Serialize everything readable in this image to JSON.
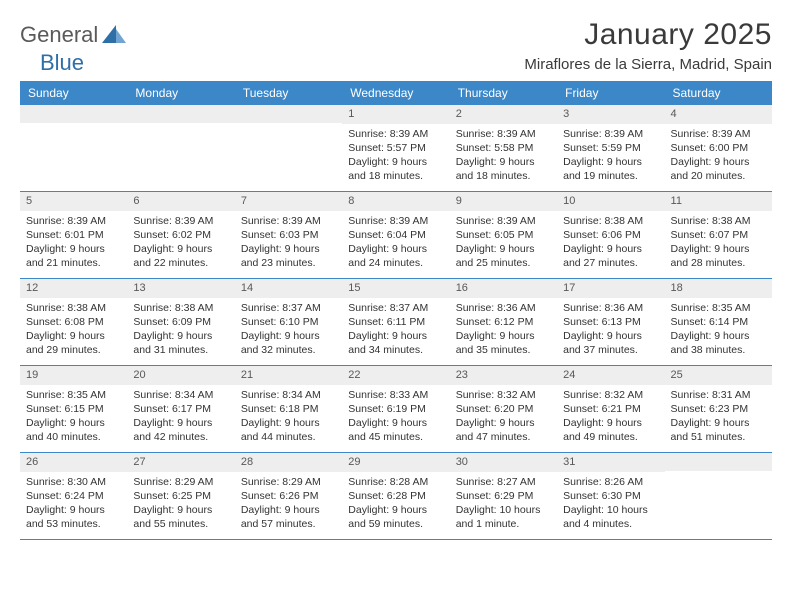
{
  "logo": {
    "part1": "General",
    "part2": "Blue"
  },
  "title": "January 2025",
  "location": "Miraflores de la Sierra, Madrid, Spain",
  "colors": {
    "header_bg": "#3b87c8",
    "header_text": "#ffffff",
    "daynum_bg": "#eeeeee",
    "border": "#3b87c8",
    "body_text": "#333333",
    "logo_gray": "#5a5a5a",
    "logo_blue": "#2f6fa8"
  },
  "dayNames": [
    "Sunday",
    "Monday",
    "Tuesday",
    "Wednesday",
    "Thursday",
    "Friday",
    "Saturday"
  ],
  "weeks": [
    [
      {
        "n": "",
        "lines": [
          "",
          "",
          "",
          ""
        ]
      },
      {
        "n": "",
        "lines": [
          "",
          "",
          "",
          ""
        ]
      },
      {
        "n": "",
        "lines": [
          "",
          "",
          "",
          ""
        ]
      },
      {
        "n": "1",
        "lines": [
          "Sunrise: 8:39 AM",
          "Sunset: 5:57 PM",
          "Daylight: 9 hours",
          "and 18 minutes."
        ]
      },
      {
        "n": "2",
        "lines": [
          "Sunrise: 8:39 AM",
          "Sunset: 5:58 PM",
          "Daylight: 9 hours",
          "and 18 minutes."
        ]
      },
      {
        "n": "3",
        "lines": [
          "Sunrise: 8:39 AM",
          "Sunset: 5:59 PM",
          "Daylight: 9 hours",
          "and 19 minutes."
        ]
      },
      {
        "n": "4",
        "lines": [
          "Sunrise: 8:39 AM",
          "Sunset: 6:00 PM",
          "Daylight: 9 hours",
          "and 20 minutes."
        ]
      }
    ],
    [
      {
        "n": "5",
        "lines": [
          "Sunrise: 8:39 AM",
          "Sunset: 6:01 PM",
          "Daylight: 9 hours",
          "and 21 minutes."
        ]
      },
      {
        "n": "6",
        "lines": [
          "Sunrise: 8:39 AM",
          "Sunset: 6:02 PM",
          "Daylight: 9 hours",
          "and 22 minutes."
        ]
      },
      {
        "n": "7",
        "lines": [
          "Sunrise: 8:39 AM",
          "Sunset: 6:03 PM",
          "Daylight: 9 hours",
          "and 23 minutes."
        ]
      },
      {
        "n": "8",
        "lines": [
          "Sunrise: 8:39 AM",
          "Sunset: 6:04 PM",
          "Daylight: 9 hours",
          "and 24 minutes."
        ]
      },
      {
        "n": "9",
        "lines": [
          "Sunrise: 8:39 AM",
          "Sunset: 6:05 PM",
          "Daylight: 9 hours",
          "and 25 minutes."
        ]
      },
      {
        "n": "10",
        "lines": [
          "Sunrise: 8:38 AM",
          "Sunset: 6:06 PM",
          "Daylight: 9 hours",
          "and 27 minutes."
        ]
      },
      {
        "n": "11",
        "lines": [
          "Sunrise: 8:38 AM",
          "Sunset: 6:07 PM",
          "Daylight: 9 hours",
          "and 28 minutes."
        ]
      }
    ],
    [
      {
        "n": "12",
        "lines": [
          "Sunrise: 8:38 AM",
          "Sunset: 6:08 PM",
          "Daylight: 9 hours",
          "and 29 minutes."
        ]
      },
      {
        "n": "13",
        "lines": [
          "Sunrise: 8:38 AM",
          "Sunset: 6:09 PM",
          "Daylight: 9 hours",
          "and 31 minutes."
        ]
      },
      {
        "n": "14",
        "lines": [
          "Sunrise: 8:37 AM",
          "Sunset: 6:10 PM",
          "Daylight: 9 hours",
          "and 32 minutes."
        ]
      },
      {
        "n": "15",
        "lines": [
          "Sunrise: 8:37 AM",
          "Sunset: 6:11 PM",
          "Daylight: 9 hours",
          "and 34 minutes."
        ]
      },
      {
        "n": "16",
        "lines": [
          "Sunrise: 8:36 AM",
          "Sunset: 6:12 PM",
          "Daylight: 9 hours",
          "and 35 minutes."
        ]
      },
      {
        "n": "17",
        "lines": [
          "Sunrise: 8:36 AM",
          "Sunset: 6:13 PM",
          "Daylight: 9 hours",
          "and 37 minutes."
        ]
      },
      {
        "n": "18",
        "lines": [
          "Sunrise: 8:35 AM",
          "Sunset: 6:14 PM",
          "Daylight: 9 hours",
          "and 38 minutes."
        ]
      }
    ],
    [
      {
        "n": "19",
        "lines": [
          "Sunrise: 8:35 AM",
          "Sunset: 6:15 PM",
          "Daylight: 9 hours",
          "and 40 minutes."
        ]
      },
      {
        "n": "20",
        "lines": [
          "Sunrise: 8:34 AM",
          "Sunset: 6:17 PM",
          "Daylight: 9 hours",
          "and 42 minutes."
        ]
      },
      {
        "n": "21",
        "lines": [
          "Sunrise: 8:34 AM",
          "Sunset: 6:18 PM",
          "Daylight: 9 hours",
          "and 44 minutes."
        ]
      },
      {
        "n": "22",
        "lines": [
          "Sunrise: 8:33 AM",
          "Sunset: 6:19 PM",
          "Daylight: 9 hours",
          "and 45 minutes."
        ]
      },
      {
        "n": "23",
        "lines": [
          "Sunrise: 8:32 AM",
          "Sunset: 6:20 PM",
          "Daylight: 9 hours",
          "and 47 minutes."
        ]
      },
      {
        "n": "24",
        "lines": [
          "Sunrise: 8:32 AM",
          "Sunset: 6:21 PM",
          "Daylight: 9 hours",
          "and 49 minutes."
        ]
      },
      {
        "n": "25",
        "lines": [
          "Sunrise: 8:31 AM",
          "Sunset: 6:23 PM",
          "Daylight: 9 hours",
          "and 51 minutes."
        ]
      }
    ],
    [
      {
        "n": "26",
        "lines": [
          "Sunrise: 8:30 AM",
          "Sunset: 6:24 PM",
          "Daylight: 9 hours",
          "and 53 minutes."
        ]
      },
      {
        "n": "27",
        "lines": [
          "Sunrise: 8:29 AM",
          "Sunset: 6:25 PM",
          "Daylight: 9 hours",
          "and 55 minutes."
        ]
      },
      {
        "n": "28",
        "lines": [
          "Sunrise: 8:29 AM",
          "Sunset: 6:26 PM",
          "Daylight: 9 hours",
          "and 57 minutes."
        ]
      },
      {
        "n": "29",
        "lines": [
          "Sunrise: 8:28 AM",
          "Sunset: 6:28 PM",
          "Daylight: 9 hours",
          "and 59 minutes."
        ]
      },
      {
        "n": "30",
        "lines": [
          "Sunrise: 8:27 AM",
          "Sunset: 6:29 PM",
          "Daylight: 10 hours",
          "and 1 minute."
        ]
      },
      {
        "n": "31",
        "lines": [
          "Sunrise: 8:26 AM",
          "Sunset: 6:30 PM",
          "Daylight: 10 hours",
          "and 4 minutes."
        ]
      },
      {
        "n": "",
        "lines": [
          "",
          "",
          "",
          ""
        ]
      }
    ]
  ]
}
